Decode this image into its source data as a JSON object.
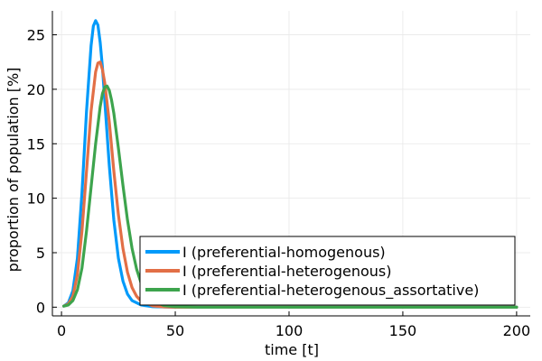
{
  "chart_data": {
    "type": "line",
    "title": "",
    "xlabel": "time [t]",
    "ylabel": "proportion of population [%]",
    "xlim": [
      -4,
      206
    ],
    "ylim": [
      -0.8,
      27.2
    ],
    "xticks": [
      0,
      50,
      100,
      150,
      200
    ],
    "yticks": [
      0,
      5,
      10,
      15,
      20,
      25
    ],
    "grid": true,
    "legend_position": "bottom-right",
    "series": [
      {
        "name": "I (preferential-homogenous)",
        "color": "#009AFA",
        "x": [
          1,
          3,
          5,
          7,
          9,
          11,
          13,
          14,
          15,
          16,
          17,
          18,
          19,
          21,
          23,
          25,
          27,
          29,
          31,
          35,
          40,
          50,
          60,
          80,
          100,
          150,
          200
        ],
        "y": [
          0.1,
          0.4,
          1.5,
          4.5,
          10.5,
          18.0,
          24.0,
          25.8,
          26.3,
          25.9,
          24.3,
          22.0,
          19.0,
          13.0,
          8.0,
          4.5,
          2.4,
          1.2,
          0.6,
          0.2,
          0.05,
          0.0,
          0.0,
          0.0,
          0.0,
          0.0,
          0.0
        ]
      },
      {
        "name": "I (preferential-heterogenous)",
        "color": "#E26F46",
        "x": [
          1,
          3,
          5,
          7,
          9,
          11,
          13,
          15,
          16,
          17,
          18,
          19,
          21,
          23,
          25,
          27,
          29,
          31,
          33,
          35,
          40,
          45,
          50,
          60,
          80,
          100,
          150,
          200
        ],
        "y": [
          0.1,
          0.3,
          1.0,
          3.0,
          7.0,
          12.5,
          18.0,
          21.6,
          22.4,
          22.5,
          21.8,
          20.6,
          17.0,
          12.5,
          8.5,
          5.4,
          3.2,
          1.8,
          1.0,
          0.55,
          0.12,
          0.03,
          0.0,
          0.0,
          0.0,
          0.0,
          0.0,
          0.0
        ]
      },
      {
        "name": "I (preferential-heterogenous_assortative)",
        "color": "#3DA44D",
        "x": [
          1,
          3,
          5,
          7,
          9,
          11,
          13,
          15,
          17,
          18,
          19,
          20,
          21,
          22,
          23,
          25,
          27,
          29,
          31,
          33,
          35,
          38,
          40,
          45,
          50,
          60,
          80,
          100,
          150,
          200
        ],
        "y": [
          0.1,
          0.2,
          0.6,
          1.6,
          3.6,
          7.0,
          11.0,
          15.0,
          18.4,
          19.6,
          20.2,
          20.3,
          19.9,
          19.0,
          17.8,
          14.6,
          11.2,
          8.0,
          5.4,
          3.5,
          2.2,
          1.0,
          0.6,
          0.15,
          0.04,
          0.0,
          0.0,
          0.0,
          0.0,
          0.0
        ]
      }
    ]
  }
}
